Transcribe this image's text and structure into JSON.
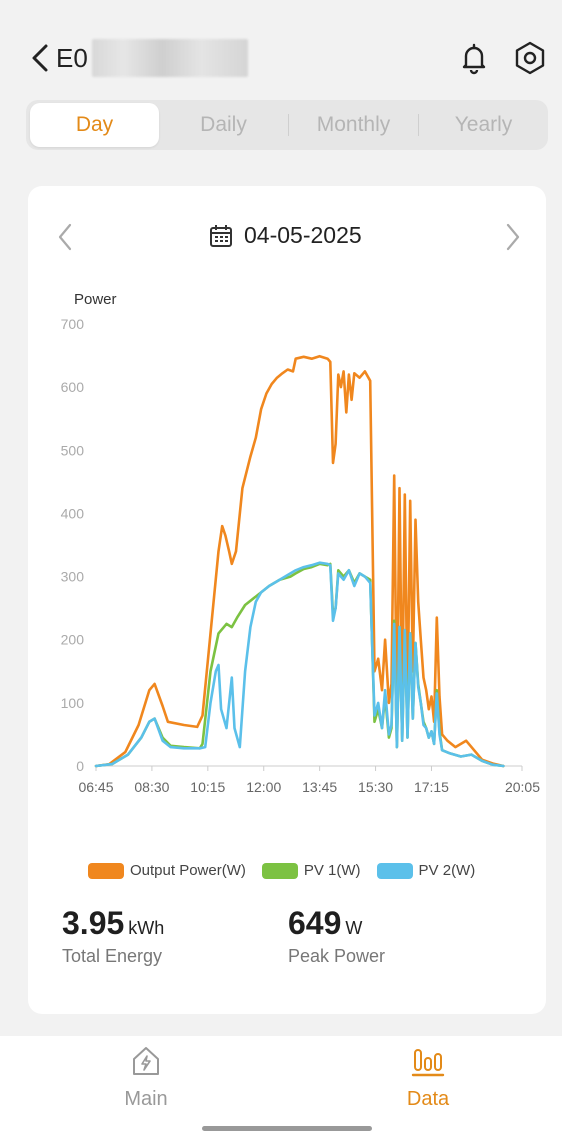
{
  "header": {
    "title": "E0",
    "icons": [
      "chevron-left-icon",
      "bell-icon",
      "settings-hex-icon"
    ]
  },
  "tabs": [
    {
      "label": "Day",
      "active": true
    },
    {
      "label": "Daily",
      "active": false
    },
    {
      "label": "Monthly",
      "active": false
    },
    {
      "label": "Yearly",
      "active": false
    }
  ],
  "date_nav": {
    "date": "04-05-2025"
  },
  "stats": {
    "total_energy_value": "3.95",
    "total_energy_unit": "kWh",
    "total_energy_label": "Total Energy",
    "peak_power_value": "649",
    "peak_power_unit": "W",
    "peak_power_label": "Peak Power"
  },
  "bottom_nav": {
    "main_label": "Main",
    "data_label": "Data"
  },
  "colors": {
    "accent": "#e38a18",
    "output": "#f0871e",
    "pv1": "#7cc242",
    "pv2": "#5bc0ea"
  },
  "chart_data": {
    "type": "line",
    "ylabel": "Power",
    "ylim": [
      0,
      700
    ],
    "yticks": [
      "0",
      "100",
      "200",
      "300",
      "400",
      "500",
      "600",
      "700"
    ],
    "xlim": [
      "06:45",
      "20:05"
    ],
    "xticks": [
      "06:45",
      "08:30",
      "10:15",
      "12:00",
      "13:45",
      "15:30",
      "17:15",
      "20:05"
    ],
    "grid": false,
    "legend_position": "bottom",
    "series": [
      {
        "name": "Output Power(W)",
        "points": [
          [
            "06:45",
            0
          ],
          [
            "07:10",
            3
          ],
          [
            "07:40",
            22
          ],
          [
            "08:05",
            65
          ],
          [
            "08:25",
            120
          ],
          [
            "08:35",
            130
          ],
          [
            "08:50",
            95
          ],
          [
            "09:00",
            70
          ],
          [
            "09:30",
            65
          ],
          [
            "09:55",
            62
          ],
          [
            "10:05",
            80
          ],
          [
            "10:20",
            210
          ],
          [
            "10:35",
            340
          ],
          [
            "10:42",
            380
          ],
          [
            "10:48",
            365
          ],
          [
            "10:55",
            340
          ],
          [
            "11:00",
            320
          ],
          [
            "11:08",
            340
          ],
          [
            "11:20",
            440
          ],
          [
            "11:35",
            490
          ],
          [
            "11:45",
            520
          ],
          [
            "11:55",
            565
          ],
          [
            "12:05",
            590
          ],
          [
            "12:15",
            605
          ],
          [
            "12:25",
            615
          ],
          [
            "12:35",
            622
          ],
          [
            "12:45",
            628
          ],
          [
            "12:55",
            625
          ],
          [
            "13:00",
            645
          ],
          [
            "13:15",
            648
          ],
          [
            "13:30",
            645
          ],
          [
            "13:45",
            649
          ],
          [
            "14:00",
            645
          ],
          [
            "14:05",
            640
          ],
          [
            "14:10",
            480
          ],
          [
            "14:15",
            510
          ],
          [
            "14:20",
            620
          ],
          [
            "14:25",
            600
          ],
          [
            "14:30",
            625
          ],
          [
            "14:35",
            560
          ],
          [
            "14:40",
            620
          ],
          [
            "14:45",
            580
          ],
          [
            "14:50",
            622
          ],
          [
            "15:00",
            615
          ],
          [
            "15:10",
            625
          ],
          [
            "15:20",
            610
          ],
          [
            "15:28",
            150
          ],
          [
            "15:35",
            170
          ],
          [
            "15:42",
            120
          ],
          [
            "15:48",
            200
          ],
          [
            "15:55",
            100
          ],
          [
            "16:00",
            130
          ],
          [
            "16:05",
            460
          ],
          [
            "16:10",
            60
          ],
          [
            "16:15",
            440
          ],
          [
            "16:20",
            80
          ],
          [
            "16:25",
            430
          ],
          [
            "16:30",
            90
          ],
          [
            "16:35",
            420
          ],
          [
            "16:40",
            150
          ],
          [
            "16:45",
            390
          ],
          [
            "16:50",
            260
          ],
          [
            "16:55",
            200
          ],
          [
            "17:00",
            140
          ],
          [
            "17:05",
            120
          ],
          [
            "17:10",
            90
          ],
          [
            "17:15",
            110
          ],
          [
            "17:20",
            70
          ],
          [
            "17:25",
            235
          ],
          [
            "17:30",
            110
          ],
          [
            "17:35",
            50
          ],
          [
            "17:45",
            40
          ],
          [
            "18:00",
            30
          ],
          [
            "18:20",
            40
          ],
          [
            "18:35",
            25
          ],
          [
            "18:50",
            10
          ],
          [
            "19:10",
            4
          ],
          [
            "19:30",
            0
          ]
        ]
      },
      {
        "name": "PV 1(W)",
        "points": [
          [
            "06:45",
            0
          ],
          [
            "07:15",
            3
          ],
          [
            "07:45",
            18
          ],
          [
            "08:10",
            45
          ],
          [
            "08:25",
            70
          ],
          [
            "08:35",
            75
          ],
          [
            "08:50",
            45
          ],
          [
            "09:05",
            32
          ],
          [
            "09:30",
            30
          ],
          [
            "10:00",
            28
          ],
          [
            "10:05",
            35
          ],
          [
            "10:20",
            150
          ],
          [
            "10:35",
            210
          ],
          [
            "10:50",
            225
          ],
          [
            "11:00",
            220
          ],
          [
            "11:10",
            235
          ],
          [
            "11:25",
            255
          ],
          [
            "11:40",
            265
          ],
          [
            "11:55",
            275
          ],
          [
            "12:10",
            285
          ],
          [
            "12:30",
            295
          ],
          [
            "12:50",
            300
          ],
          [
            "13:00",
            305
          ],
          [
            "13:15",
            312
          ],
          [
            "13:30",
            315
          ],
          [
            "13:45",
            320
          ],
          [
            "14:00",
            318
          ],
          [
            "14:05",
            320
          ],
          [
            "14:10",
            240
          ],
          [
            "14:15",
            250
          ],
          [
            "14:20",
            310
          ],
          [
            "14:30",
            300
          ],
          [
            "14:40",
            310
          ],
          [
            "14:50",
            290
          ],
          [
            "15:00",
            305
          ],
          [
            "15:10",
            300
          ],
          [
            "15:20",
            295
          ],
          [
            "15:28",
            70
          ],
          [
            "15:35",
            90
          ],
          [
            "15:42",
            60
          ],
          [
            "15:48",
            110
          ],
          [
            "15:55",
            45
          ],
          [
            "16:00",
            60
          ],
          [
            "16:05",
            230
          ],
          [
            "16:10",
            30
          ],
          [
            "16:15",
            220
          ],
          [
            "16:20",
            40
          ],
          [
            "16:25",
            215
          ],
          [
            "16:30",
            45
          ],
          [
            "16:35",
            210
          ],
          [
            "16:40",
            75
          ],
          [
            "16:45",
            195
          ],
          [
            "16:50",
            130
          ],
          [
            "16:55",
            100
          ],
          [
            "17:00",
            70
          ],
          [
            "17:05",
            60
          ],
          [
            "17:10",
            45
          ],
          [
            "17:15",
            55
          ],
          [
            "17:20",
            35
          ],
          [
            "17:25",
            120
          ],
          [
            "17:30",
            55
          ],
          [
            "17:35",
            25
          ],
          [
            "17:50",
            20
          ],
          [
            "18:10",
            15
          ],
          [
            "18:30",
            18
          ],
          [
            "18:50",
            8
          ],
          [
            "19:10",
            2
          ],
          [
            "19:30",
            0
          ]
        ]
      },
      {
        "name": "PV 2(W)",
        "points": [
          [
            "06:45",
            0
          ],
          [
            "07:15",
            3
          ],
          [
            "07:45",
            18
          ],
          [
            "08:10",
            45
          ],
          [
            "08:25",
            70
          ],
          [
            "08:35",
            75
          ],
          [
            "08:50",
            40
          ],
          [
            "09:05",
            30
          ],
          [
            "09:30",
            28
          ],
          [
            "10:00",
            28
          ],
          [
            "10:10",
            30
          ],
          [
            "10:20",
            100
          ],
          [
            "10:30",
            150
          ],
          [
            "10:35",
            160
          ],
          [
            "10:40",
            90
          ],
          [
            "10:50",
            60
          ],
          [
            "11:00",
            140
          ],
          [
            "11:05",
            60
          ],
          [
            "11:15",
            30
          ],
          [
            "11:25",
            150
          ],
          [
            "11:35",
            220
          ],
          [
            "11:45",
            260
          ],
          [
            "11:55",
            275
          ],
          [
            "12:10",
            285
          ],
          [
            "12:30",
            295
          ],
          [
            "12:50",
            305
          ],
          [
            "13:00",
            310
          ],
          [
            "13:15",
            315
          ],
          [
            "13:30",
            318
          ],
          [
            "13:45",
            322
          ],
          [
            "14:00",
            320
          ],
          [
            "14:05",
            318
          ],
          [
            "14:10",
            230
          ],
          [
            "14:15",
            250
          ],
          [
            "14:20",
            305
          ],
          [
            "14:30",
            295
          ],
          [
            "14:40",
            310
          ],
          [
            "14:50",
            285
          ],
          [
            "15:00",
            305
          ],
          [
            "15:10",
            300
          ],
          [
            "15:20",
            290
          ],
          [
            "15:28",
            80
          ],
          [
            "15:35",
            100
          ],
          [
            "15:42",
            60
          ],
          [
            "15:48",
            120
          ],
          [
            "15:55",
            50
          ],
          [
            "16:00",
            65
          ],
          [
            "16:05",
            225
          ],
          [
            "16:10",
            30
          ],
          [
            "16:15",
            220
          ],
          [
            "16:20",
            40
          ],
          [
            "16:25",
            215
          ],
          [
            "16:30",
            45
          ],
          [
            "16:35",
            210
          ],
          [
            "16:40",
            75
          ],
          [
            "16:45",
            195
          ],
          [
            "16:50",
            125
          ],
          [
            "16:55",
            100
          ],
          [
            "17:00",
            65
          ],
          [
            "17:05",
            60
          ],
          [
            "17:10",
            45
          ],
          [
            "17:15",
            55
          ],
          [
            "17:20",
            35
          ],
          [
            "17:25",
            115
          ],
          [
            "17:30",
            50
          ],
          [
            "17:35",
            25
          ],
          [
            "17:50",
            20
          ],
          [
            "18:10",
            15
          ],
          [
            "18:30",
            18
          ],
          [
            "18:50",
            8
          ],
          [
            "19:10",
            2
          ],
          [
            "19:30",
            0
          ]
        ]
      }
    ]
  }
}
